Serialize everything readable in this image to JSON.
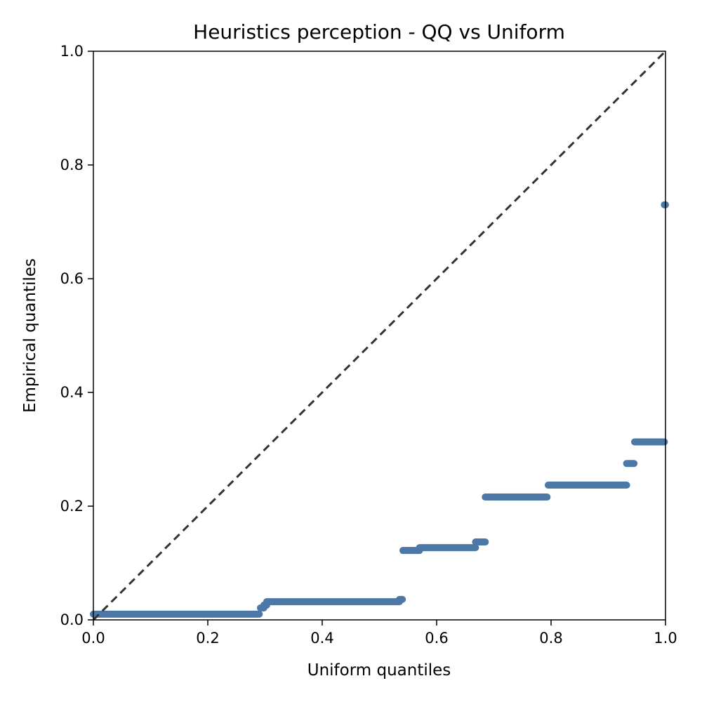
{
  "chart_data": {
    "type": "scatter",
    "title": "Heuristics perception - QQ vs Uniform",
    "xlabel": "Uniform quantiles",
    "ylabel": "Empirical quantiles",
    "xlim": [
      0,
      1
    ],
    "ylim": [
      0,
      1
    ],
    "xticks": [
      "0.0",
      "0.2",
      "0.4",
      "0.6",
      "0.8",
      "1.0"
    ],
    "yticks": [
      "0.0",
      "0.2",
      "0.4",
      "0.6",
      "0.8",
      "1.0"
    ],
    "grid": false,
    "colors": {
      "points": "#4c78a8",
      "reference": "#333333"
    },
    "reference_line": {
      "x": [
        0,
        1
      ],
      "y": [
        0,
        1
      ],
      "style": "dashed"
    },
    "segments": [
      {
        "x": [
          0.0,
          0.29
        ],
        "y": 0.01
      },
      {
        "x": [
          0.292,
          0.298
        ],
        "y": 0.021
      },
      {
        "x": [
          0.298,
          0.303
        ],
        "y": 0.026
      },
      {
        "x": [
          0.303,
          0.535
        ],
        "y": 0.032
      },
      {
        "x": [
          0.535,
          0.54
        ],
        "y": 0.036
      },
      {
        "x": [
          0.541,
          0.57
        ],
        "y": 0.122
      },
      {
        "x": [
          0.57,
          0.668
        ],
        "y": 0.127
      },
      {
        "x": [
          0.668,
          0.685
        ],
        "y": 0.137
      },
      {
        "x": [
          0.685,
          0.793
        ],
        "y": 0.216
      },
      {
        "x": [
          0.795,
          0.932
        ],
        "y": 0.237
      },
      {
        "x": [
          0.932,
          0.945
        ],
        "y": 0.275
      },
      {
        "x": [
          0.946,
          0.998
        ],
        "y": 0.313
      },
      {
        "x": [
          0.998,
          1.0
        ],
        "y": 0.73
      }
    ]
  }
}
